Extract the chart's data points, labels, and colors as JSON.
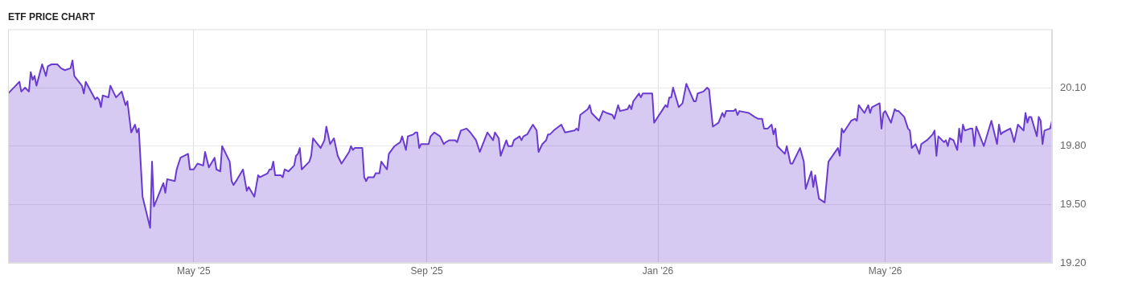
{
  "chart_data": {
    "type": "area",
    "title": "ETF PRICE CHART",
    "x": [
      "2025-01-23",
      "2025-01-27",
      "2025-01-29",
      "2025-01-30",
      "2025-02-01",
      "2025-02-03",
      "2025-02-04",
      "2025-02-05",
      "2025-02-06",
      "2025-02-07",
      "2025-02-10",
      "2025-02-12",
      "2025-02-13",
      "2025-02-15",
      "2025-02-18",
      "2025-02-20",
      "2025-02-22",
      "2025-02-25",
      "2025-02-26",
      "2025-02-27",
      "2025-03-03",
      "2025-03-04",
      "2025-03-05",
      "2025-03-10",
      "2025-03-11",
      "2025-03-12",
      "2025-03-13",
      "2025-03-14",
      "2025-03-17",
      "2025-03-18",
      "2025-03-21",
      "2025-03-24",
      "2025-03-26",
      "2025-03-27",
      "2025-03-29",
      "2025-03-31",
      "2025-04-01",
      "2025-04-02",
      "2025-04-04",
      "2025-04-08",
      "2025-04-09",
      "2025-04-10",
      "2025-04-15",
      "2025-04-16",
      "2025-04-17",
      "2025-04-21",
      "2025-04-22",
      "2025-04-24",
      "2025-04-28",
      "2025-04-29",
      "2025-05-01",
      "2025-05-03",
      "2025-05-06",
      "2025-05-07",
      "2025-05-09",
      "2025-05-12",
      "2025-05-13",
      "2025-05-15",
      "2025-05-16",
      "2025-05-20",
      "2025-05-21",
      "2025-05-22",
      "2025-05-24",
      "2025-05-27",
      "2025-05-29",
      "2025-05-30",
      "2025-06-02",
      "2025-06-04",
      "2025-06-05",
      "2025-06-09",
      "2025-06-10",
      "2025-06-11",
      "2025-06-12",
      "2025-06-13",
      "2025-06-16",
      "2025-06-17",
      "2025-06-18",
      "2025-06-20",
      "2025-06-23",
      "2025-06-24",
      "2025-06-25",
      "2025-06-26",
      "2025-06-27",
      "2025-07-01",
      "2025-07-02",
      "2025-07-03",
      "2025-07-07",
      "2025-07-09",
      "2025-07-10",
      "2025-07-12",
      "2025-07-14",
      "2025-07-16",
      "2025-07-18",
      "2025-07-22",
      "2025-07-23",
      "2025-07-24",
      "2025-07-25",
      "2025-07-29",
      "2025-07-30",
      "2025-07-31",
      "2025-08-01",
      "2025-08-04",
      "2025-08-05",
      "2025-08-07",
      "2025-08-08",
      "2025-08-11",
      "2025-08-12",
      "2025-08-15",
      "2025-08-18",
      "2025-08-19",
      "2025-08-21",
      "2025-08-22",
      "2025-08-25",
      "2025-08-26",
      "2025-08-27",
      "2025-08-28",
      "2025-08-29",
      "2025-09-02",
      "2025-09-03",
      "2025-09-05",
      "2025-09-08",
      "2025-09-10",
      "2025-09-11",
      "2025-09-13",
      "2025-09-16",
      "2025-09-17",
      "2025-09-18",
      "2025-09-19",
      "2025-09-22",
      "2025-09-24",
      "2025-09-27",
      "2025-09-29",
      "2025-10-01",
      "2025-10-03",
      "2025-10-06",
      "2025-10-07",
      "2025-10-09",
      "2025-10-10",
      "2025-10-13",
      "2025-10-14",
      "2025-10-16",
      "2025-10-17",
      "2025-10-20",
      "2025-10-21",
      "2025-10-22",
      "2025-10-24",
      "2025-10-27",
      "2025-10-29",
      "2025-10-30",
      "2025-11-01",
      "2025-11-03",
      "2025-11-04",
      "2025-11-05",
      "2025-11-07",
      "2025-11-11",
      "2025-11-12",
      "2025-11-13",
      "2025-11-18",
      "2025-11-19",
      "2025-11-20",
      "2025-11-21",
      "2025-11-25",
      "2025-11-26",
      "2025-11-27",
      "2025-11-28",
      "2025-12-01",
      "2025-12-03",
      "2025-12-05",
      "2025-12-08",
      "2025-12-09",
      "2025-12-11",
      "2025-12-12",
      "2025-12-16",
      "2025-12-17",
      "2025-12-18",
      "2025-12-19",
      "2025-12-22",
      "2025-12-23",
      "2025-12-24",
      "2025-12-29",
      "2025-12-30",
      "2026-01-01",
      "2026-01-05",
      "2026-01-06",
      "2026-01-07",
      "2026-01-08",
      "2026-01-09",
      "2026-01-12",
      "2026-01-14",
      "2026-01-16",
      "2026-01-20",
      "2026-01-21",
      "2026-01-22",
      "2026-01-25",
      "2026-01-27",
      "2026-01-28",
      "2026-01-30",
      "2026-02-02",
      "2026-02-04",
      "2026-02-05",
      "2026-02-06",
      "2026-02-10",
      "2026-02-11",
      "2026-02-12",
      "2026-02-13",
      "2026-02-18",
      "2026-02-21",
      "2026-02-23",
      "2026-02-25",
      "2026-02-26",
      "2026-02-28",
      "2026-03-02",
      "2026-03-03",
      "2026-03-04",
      "2026-03-05",
      "2026-03-09",
      "2026-03-10",
      "2026-03-12",
      "2026-03-13",
      "2026-03-17",
      "2026-03-19",
      "2026-03-20",
      "2026-03-23",
      "2026-03-24",
      "2026-03-25",
      "2026-03-27",
      "2026-03-30",
      "2026-04-01",
      "2026-04-06",
      "2026-04-07",
      "2026-04-08",
      "2026-04-09",
      "2026-04-13",
      "2026-04-15",
      "2026-04-16",
      "2026-04-17",
      "2026-04-20",
      "2026-04-22",
      "2026-04-23",
      "2026-04-24",
      "2026-04-28",
      "2026-04-29",
      "2026-04-30",
      "2026-05-01",
      "2026-05-04",
      "2026-05-06",
      "2026-05-07",
      "2026-05-08",
      "2026-05-11",
      "2026-05-13",
      "2026-05-14",
      "2026-05-15",
      "2026-05-17",
      "2026-05-19",
      "2026-05-20",
      "2026-05-23",
      "2026-05-26",
      "2026-05-27",
      "2026-05-28",
      "2026-05-29",
      "2026-06-01",
      "2026-06-02",
      "2026-06-03",
      "2026-06-04",
      "2026-06-06",
      "2026-06-08",
      "2026-06-09",
      "2026-06-10",
      "2026-06-11",
      "2026-06-12",
      "2026-06-15",
      "2026-06-16",
      "2026-06-17",
      "2026-06-18",
      "2026-06-22",
      "2026-06-26",
      "2026-06-29",
      "2026-06-30",
      "2026-07-01",
      "2026-07-02",
      "2026-07-06",
      "2026-07-07",
      "2026-07-08",
      "2026-07-10",
      "2026-07-13",
      "2026-07-14",
      "2026-07-15",
      "2026-07-16",
      "2026-07-17",
      "2026-07-20",
      "2026-07-21",
      "2026-07-22",
      "2026-07-23",
      "2026-07-24",
      "2026-07-27",
      "2026-07-28"
    ],
    "series": [
      {
        "color": "#6a3bd0",
        "values": [
          20.07,
          20.11,
          20.13,
          20.08,
          20.1,
          20.08,
          20.18,
          20.14,
          20.16,
          20.11,
          20.22,
          20.16,
          20.21,
          20.22,
          20.22,
          20.2,
          20.19,
          20.2,
          20.24,
          20.16,
          20.11,
          20.07,
          20.13,
          20.04,
          20.05,
          20.04,
          20.0,
          20.06,
          20.05,
          20.11,
          20.05,
          20.08,
          20.01,
          20.03,
          19.87,
          19.91,
          19.87,
          19.89,
          19.54,
          19.38,
          19.72,
          19.49,
          19.61,
          19.56,
          19.63,
          19.62,
          19.68,
          19.74,
          19.76,
          19.68,
          19.68,
          19.71,
          19.7,
          19.77,
          19.69,
          19.74,
          19.68,
          19.67,
          19.8,
          19.72,
          19.62,
          19.6,
          19.63,
          19.68,
          19.57,
          19.59,
          19.54,
          19.65,
          19.64,
          19.66,
          19.68,
          19.68,
          19.72,
          19.65,
          19.65,
          19.64,
          19.68,
          19.67,
          19.7,
          19.75,
          19.76,
          19.79,
          19.68,
          19.72,
          19.75,
          19.84,
          19.79,
          19.83,
          19.9,
          19.81,
          19.84,
          19.75,
          19.71,
          19.77,
          19.8,
          19.78,
          19.79,
          19.79,
          19.64,
          19.62,
          19.64,
          19.64,
          19.66,
          19.66,
          19.72,
          19.68,
          19.76,
          19.8,
          19.82,
          19.85,
          19.78,
          19.85,
          19.86,
          19.87,
          19.87,
          19.79,
          19.81,
          19.81,
          19.85,
          19.87,
          19.85,
          19.81,
          19.82,
          19.83,
          19.83,
          19.82,
          19.85,
          19.88,
          19.89,
          19.87,
          19.83,
          19.77,
          19.82,
          19.87,
          19.83,
          19.87,
          19.84,
          19.75,
          19.83,
          19.8,
          19.8,
          19.83,
          19.85,
          19.83,
          19.85,
          19.86,
          19.91,
          19.88,
          19.77,
          19.81,
          19.83,
          19.86,
          19.86,
          19.88,
          19.91,
          19.89,
          19.87,
          19.88,
          19.89,
          19.88,
          19.96,
          19.99,
          20.01,
          19.97,
          19.96,
          19.93,
          19.98,
          19.97,
          19.96,
          19.94,
          20.01,
          19.98,
          19.99,
          20.01,
          19.99,
          20.03,
          20.07,
          20.05,
          20.07,
          20.07,
          19.92,
          19.95,
          20.01,
          20.0,
          20.05,
          20.05,
          20.1,
          20.0,
          20.02,
          20.12,
          20.03,
          20.03,
          20.07,
          20.08,
          20.1,
          20.09,
          19.9,
          19.92,
          19.97,
          19.95,
          19.98,
          19.98,
          19.99,
          19.96,
          19.98,
          19.97,
          19.95,
          19.94,
          19.94,
          19.89,
          19.89,
          19.91,
          19.86,
          19.89,
          19.8,
          19.76,
          19.8,
          19.71,
          19.71,
          19.79,
          19.72,
          19.58,
          19.67,
          19.59,
          19.65,
          19.53,
          19.51,
          19.72,
          19.79,
          19.75,
          19.89,
          19.87,
          19.93,
          19.94,
          19.93,
          20.01,
          19.97,
          20.01,
          19.97,
          20.0,
          20.02,
          19.89,
          19.97,
          19.98,
          19.92,
          19.99,
          19.98,
          19.98,
          19.95,
          19.89,
          19.88,
          19.79,
          19.81,
          19.76,
          19.81,
          19.83,
          19.86,
          19.88,
          19.75,
          19.85,
          19.82,
          19.83,
          19.8,
          19.84,
          19.83,
          19.78,
          19.89,
          19.82,
          19.91,
          19.88,
          19.89,
          19.89,
          19.8,
          19.9,
          19.8,
          19.93,
          19.81,
          19.91,
          19.86,
          19.87,
          19.89,
          19.86,
          19.82,
          19.91,
          19.88,
          19.97,
          19.92,
          19.95,
          19.95,
          19.85,
          19.95,
          19.93,
          19.81,
          19.88,
          19.89,
          19.93
        ]
      }
    ],
    "xlim": [
      "2025-01-23",
      "2026-07-28"
    ],
    "xticks": [
      {
        "value": "2025-05-01",
        "label": "May '25"
      },
      {
        "value": "2025-09-01",
        "label": "Sep '25"
      },
      {
        "value": "2026-01-01",
        "label": "Jan '26"
      },
      {
        "value": "2026-05-01",
        "label": "May '26"
      }
    ],
    "ylim": [
      19.2,
      20.4
    ],
    "yticks": [
      {
        "value": 19.2,
        "label": "19.20"
      },
      {
        "value": 19.5,
        "label": "19.50"
      },
      {
        "value": 19.8,
        "label": "19.80"
      },
      {
        "value": 20.1,
        "label": "20.10"
      }
    ],
    "grid": true,
    "legend": false
  }
}
